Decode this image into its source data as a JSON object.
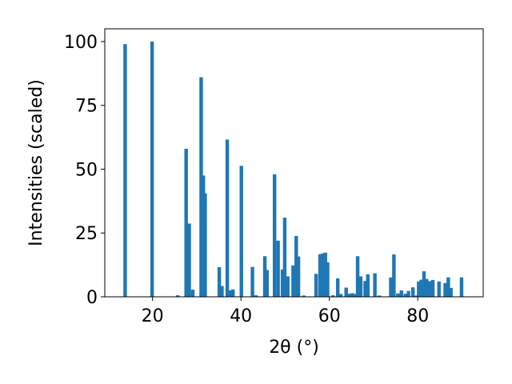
{
  "chart_data": {
    "type": "bar",
    "title": "",
    "xlabel": "2θ (°)",
    "ylabel": "Intensities (scaled)",
    "xlim": [
      9.2,
      94.8
    ],
    "ylim": [
      0,
      105
    ],
    "xticks": [
      20,
      40,
      60,
      80
    ],
    "yticks": [
      0,
      25,
      50,
      75,
      100
    ],
    "grid": false,
    "bar_color": "#1f77b4",
    "bar_width": 0.8,
    "x": [
      13.8,
      19.9,
      25.7,
      27.6,
      28.3,
      29.1,
      31.0,
      31.5,
      31.9,
      35.1,
      35.7,
      36.9,
      37.6,
      38.2,
      40.1,
      42.6,
      43.4,
      45.4,
      45.9,
      47.6,
      48.4,
      49.4,
      49.9,
      50.6,
      51.8,
      52.5,
      53.0,
      54.2,
      57.0,
      57.9,
      58.5,
      59.1,
      59.6,
      60.8,
      61.9,
      62.6,
      63.8,
      64.5,
      65.2,
      65.9,
      66.4,
      67.1,
      68.1,
      68.7,
      70.3,
      71.3,
      73.9,
      74.6,
      75.5,
      76.3,
      77.2,
      77.9,
      78.9,
      79.6,
      80.2,
      80.8,
      81.4,
      82.0,
      82.7,
      83.4,
      84.8,
      86.2,
      86.9,
      87.5,
      89.9
    ],
    "values": [
      99.0,
      100.0,
      0.6,
      58.0,
      28.7,
      2.8,
      86.0,
      47.5,
      40.5,
      11.6,
      4.2,
      61.6,
      2.5,
      2.9,
      51.3,
      11.7,
      0.6,
      15.9,
      10.5,
      48.0,
      22.0,
      10.7,
      31.0,
      8.0,
      12.3,
      23.8,
      15.8,
      0.5,
      9.0,
      16.7,
      17.0,
      17.3,
      13.5,
      0.6,
      7.2,
      1.1,
      3.6,
      1.2,
      1.4,
      1.1,
      15.9,
      8.0,
      6.2,
      8.8,
      9.2,
      0.5,
      7.6,
      16.6,
      1.3,
      2.5,
      1.2,
      2.3,
      3.7,
      0.5,
      6.0,
      6.7,
      10.0,
      7.0,
      6.1,
      6.6,
      6.0,
      5.4,
      7.6,
      3.5,
      7.6
    ]
  }
}
